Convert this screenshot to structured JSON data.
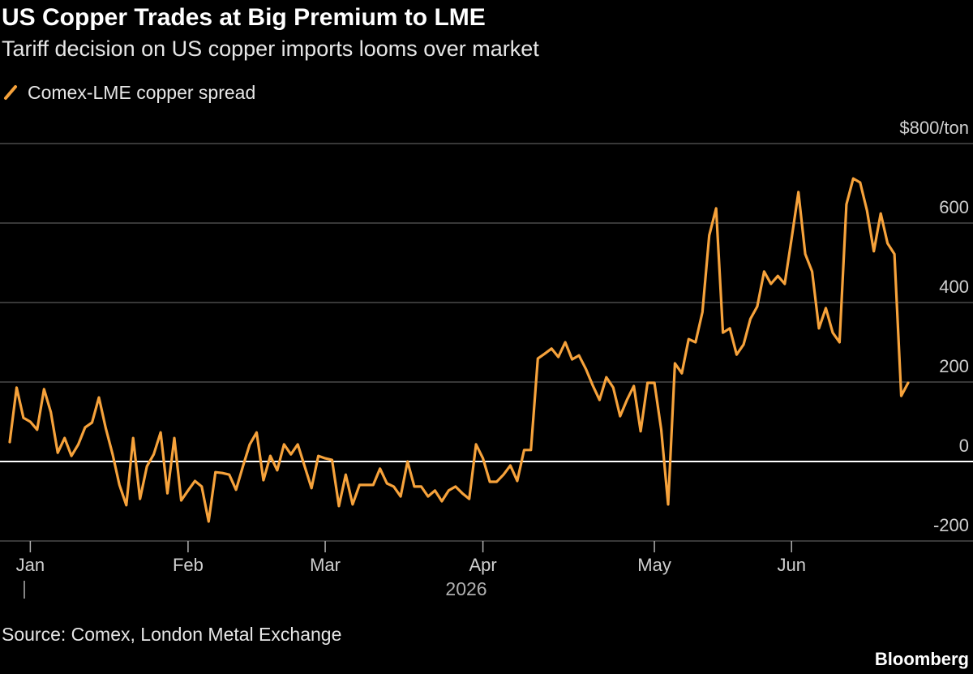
{
  "chart_data": {
    "type": "line",
    "title": "US Copper Trades at Big Premium to LME",
    "subtitle": "Tariff decision on US copper imports looms over market",
    "x_label": "2026",
    "source": "Source: Comex, London Metal Exchange",
    "credit": "Bloomberg",
    "categories": [
      null,
      null,
      null,
      "Jan",
      null,
      null,
      null,
      null,
      null,
      null,
      null,
      null,
      null,
      null,
      null,
      null,
      null,
      null,
      null,
      null,
      null,
      null,
      null,
      null,
      null,
      null,
      "Feb",
      null,
      null,
      null,
      null,
      null,
      null,
      null,
      null,
      null,
      null,
      null,
      null,
      null,
      null,
      null,
      null,
      null,
      null,
      null,
      "Mar",
      null,
      null,
      null,
      null,
      null,
      null,
      null,
      null,
      null,
      null,
      null,
      null,
      null,
      null,
      null,
      null,
      null,
      null,
      null,
      null,
      null,
      null,
      "Apr",
      null,
      null,
      null,
      null,
      null,
      null,
      null,
      null,
      null,
      null,
      null,
      null,
      null,
      null,
      null,
      null,
      null,
      null,
      null,
      null,
      null,
      null,
      null,
      null,
      "May",
      null,
      null,
      null,
      null,
      null,
      null,
      null,
      null,
      null,
      null,
      null,
      null,
      null,
      null,
      null,
      null,
      null,
      null,
      null,
      "Jun",
      null,
      null,
      null,
      null,
      null,
      null,
      null,
      null,
      null,
      null,
      null,
      null,
      null,
      null,
      null,
      null,
      null
    ],
    "series": [
      {
        "name": "Comex-LME copper spread",
        "color": "#f6a23b",
        "values": [
          49,
          186,
          110,
          100,
          80,
          182,
          124,
          22,
          59,
          14,
          43,
          86,
          98,
          161,
          84,
          18,
          -59,
          -110,
          59,
          -94,
          -12,
          18,
          73,
          -80,
          59,
          -98,
          -73,
          -49,
          -63,
          -151,
          -27,
          -29,
          -33,
          -71,
          -12,
          43,
          73,
          -47,
          14,
          -22,
          43,
          18,
          43,
          -12,
          -67,
          14,
          8,
          4,
          -112,
          -33,
          -108,
          -59,
          -59,
          -59,
          -18,
          -55,
          -63,
          -88,
          0,
          -63,
          -63,
          -88,
          -73,
          -100,
          -73,
          -63,
          -80,
          -94,
          43,
          8,
          -51,
          -51,
          -33,
          -10,
          -49,
          29,
          29,
          259,
          271,
          284,
          263,
          300,
          257,
          267,
          233,
          192,
          155,
          212,
          186,
          114,
          155,
          190,
          76,
          198,
          198,
          80,
          -108,
          247,
          222,
          308,
          300,
          376,
          569,
          637,
          324,
          335,
          269,
          294,
          359,
          390,
          478,
          447,
          467,
          447,
          560,
          678,
          522,
          478,
          335,
          386,
          324,
          300,
          647,
          712,
          702,
          631,
          529,
          624,
          549,
          522,
          165,
          198
        ]
      }
    ],
    "ylim": [
      -200,
      800
    ],
    "yticks": [
      -200,
      0,
      200,
      400,
      600,
      {
        "value": 800,
        "label": "$800/ton"
      }
    ],
    "grid": true,
    "legend": "top-left"
  }
}
